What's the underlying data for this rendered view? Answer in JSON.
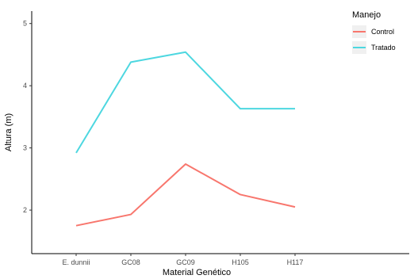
{
  "chart_data": {
    "type": "line",
    "xlabel": "Material Genético",
    "ylabel": "Altura (m)",
    "categories": [
      "E. dunnii",
      "GC08",
      "GC09",
      "H105",
      "H117"
    ],
    "ylim": [
      1.3,
      5.2
    ],
    "yticks": [
      2,
      3,
      4,
      5
    ],
    "grid": false,
    "legend": {
      "title": "Manejo",
      "position": "top-right"
    },
    "series": [
      {
        "name": "Control",
        "color": "#F8766D",
        "values": [
          1.75,
          1.93,
          2.74,
          2.25,
          2.05
        ]
      },
      {
        "name": "Tratado",
        "color": "#4DD7E0",
        "values": [
          2.92,
          4.38,
          4.54,
          3.63,
          3.63
        ]
      }
    ]
  }
}
